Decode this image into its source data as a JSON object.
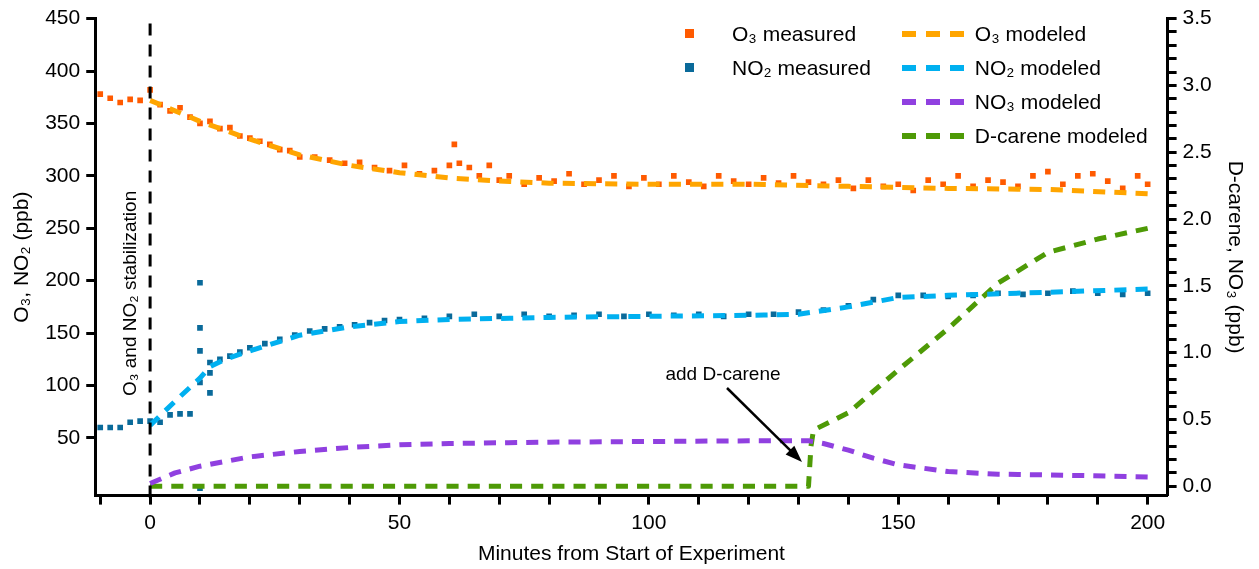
{
  "chart_data": {
    "type": "scatter",
    "xlabel": "Minutes from Start of Experiment",
    "ylabel": "O₃, NO₂ (ppb)",
    "y2label": "D-carene, NO₃ (ppb)",
    "xlim": [
      -11,
      204
    ],
    "xticks": [
      {
        "value": -10,
        "label": null
      },
      0,
      {
        "value": 10,
        "label": null
      },
      {
        "value": 20,
        "label": null
      },
      {
        "value": 30,
        "label": null
      },
      {
        "value": 40,
        "label": null
      },
      50,
      {
        "value": 60,
        "label": null
      },
      {
        "value": 70,
        "label": null
      },
      {
        "value": 80,
        "label": null
      },
      {
        "value": 90,
        "label": null
      },
      100,
      {
        "value": 110,
        "label": null
      },
      {
        "value": 120,
        "label": null
      },
      {
        "value": 130,
        "label": null
      },
      {
        "value": 140,
        "label": null
      },
      150,
      {
        "value": 160,
        "label": null
      },
      {
        "value": 170,
        "label": null
      },
      {
        "value": 180,
        "label": null
      },
      {
        "value": 190,
        "label": null
      },
      200
    ],
    "ylim": [
      -5,
      450
    ],
    "yticks": [
      50,
      100,
      150,
      200,
      250,
      300,
      350,
      400,
      450
    ],
    "y2lim": [
      -0.07,
      3.5
    ],
    "y2ticks": [
      {
        "value": 0,
        "label": "0.0"
      },
      {
        "value": 0.1,
        "label": null
      },
      {
        "value": 0.2,
        "label": null
      },
      {
        "value": 0.3,
        "label": null
      },
      {
        "value": 0.4,
        "label": null
      },
      0.5,
      {
        "value": 0.6,
        "label": null
      },
      {
        "value": 0.7,
        "label": null
      },
      {
        "value": 0.8,
        "label": null
      },
      {
        "value": 0.9,
        "label": null
      },
      {
        "value": 1,
        "label": "1.0"
      },
      {
        "value": 1.1,
        "label": null
      },
      {
        "value": 1.2,
        "label": null
      },
      {
        "value": 1.3,
        "label": null
      },
      {
        "value": 1.4,
        "label": null
      },
      1.5,
      {
        "value": 1.6,
        "label": null
      },
      {
        "value": 1.7,
        "label": null
      },
      {
        "value": 1.8,
        "label": null
      },
      {
        "value": 1.9,
        "label": null
      },
      {
        "value": 2,
        "label": "2.0"
      },
      {
        "value": 2.1,
        "label": null
      },
      {
        "value": 2.2,
        "label": null
      },
      {
        "value": 2.3,
        "label": null
      },
      {
        "value": 2.4,
        "label": null
      },
      2.5,
      {
        "value": 2.6,
        "label": null
      },
      {
        "value": 2.7,
        "label": null
      },
      {
        "value": 2.8,
        "label": null
      },
      {
        "value": 2.9,
        "label": null
      },
      {
        "value": 3,
        "label": "3.0"
      },
      {
        "value": 3.1,
        "label": null
      },
      {
        "value": 3.2,
        "label": null
      },
      {
        "value": 3.3,
        "label": null
      },
      {
        "value": 3.4,
        "label": null
      },
      3.5
    ],
    "legend": "top right",
    "ref_lines": [
      {
        "axis": "x",
        "value": 0,
        "label": "O₃ and NO₂ stabilization",
        "color": "#000000",
        "line_style": "dashed"
      }
    ],
    "annotations": [
      "add D-carene"
    ],
    "series": [
      {
        "name": "O₃ measured",
        "marker": "square",
        "color": "#ff5a00",
        "x": [
          -10,
          -8,
          -6,
          -4,
          -2,
          0,
          2,
          4,
          6,
          8,
          10,
          12,
          14,
          16,
          18,
          20,
          22,
          24,
          26,
          28,
          30,
          33,
          36,
          39,
          42,
          45,
          48,
          51,
          54,
          57,
          60,
          61,
          62,
          64,
          66,
          68,
          70,
          72,
          75,
          78,
          81,
          84,
          87,
          90,
          93,
          96,
          99,
          102,
          105,
          108,
          111,
          114,
          117,
          120,
          123,
          126,
          129,
          132,
          135,
          138,
          141,
          144,
          147,
          150,
          153,
          156,
          159,
          162,
          165,
          168,
          171,
          174,
          177,
          180,
          183,
          186,
          189,
          192,
          195,
          198,
          200
        ],
        "values": [
          378,
          374,
          370,
          373,
          372,
          382,
          368,
          362,
          365,
          356,
          350,
          352,
          345,
          346,
          338,
          336,
          333,
          330,
          325,
          324,
          318,
          318,
          315,
          312,
          313,
          308,
          305,
          310,
          302,
          305,
          310,
          330,
          312,
          308,
          300,
          310,
          296,
          300,
          292,
          298,
          295,
          302,
          292,
          296,
          300,
          290,
          298,
          292,
          300,
          294,
          290,
          300,
          295,
          292,
          298,
          293,
          300,
          294,
          292,
          296,
          288,
          296,
          290,
          292,
          286,
          296,
          292,
          300,
          290,
          296,
          294,
          290,
          300,
          304,
          292,
          300,
          302,
          295,
          288,
          300,
          292
        ]
      },
      {
        "name": "NO₂ measured",
        "marker": "square",
        "color": "#0a6a9a",
        "x": [
          -10,
          -8,
          -6,
          -4,
          -2,
          0,
          2,
          4,
          6,
          8,
          10,
          10,
          10,
          10,
          10,
          12,
          12,
          12,
          14,
          16,
          18,
          20,
          23,
          26,
          29,
          32,
          35,
          38,
          41,
          44,
          47,
          50,
          55,
          60,
          65,
          70,
          75,
          80,
          85,
          90,
          95,
          100,
          105,
          110,
          115,
          120,
          125,
          130,
          135,
          140,
          145,
          150,
          155,
          160,
          165,
          170,
          175,
          180,
          185,
          190,
          195,
          200
        ],
        "values": [
          60,
          60,
          60,
          65,
          66,
          66,
          65,
          72,
          73,
          73,
          2,
          103,
          133,
          155,
          198,
          93,
          112,
          122,
          125,
          128,
          132,
          136,
          140,
          144,
          148,
          152,
          154,
          156,
          158,
          160,
          162,
          163,
          164,
          166,
          168,
          166,
          168,
          166,
          167,
          168,
          166,
          168,
          167,
          168,
          166,
          168,
          168,
          170,
          172,
          176,
          182,
          186,
          186,
          185,
          186,
          188,
          187,
          188,
          190,
          188,
          187,
          188
        ]
      },
      {
        "name": "O₃ modeled",
        "type": "line",
        "line_style": "dashed",
        "color": "#ffa500",
        "x": [
          0,
          10,
          20,
          30,
          40,
          50,
          60,
          70,
          80,
          100,
          120,
          140,
          160,
          180,
          200
        ],
        "values": [
          372,
          352,
          335,
          320,
          310,
          303,
          298,
          295,
          293,
          292,
          292,
          290,
          288,
          287,
          283
        ]
      },
      {
        "name": "NO₂ modeled",
        "type": "line",
        "line_style": "dashed",
        "color": "#00b0f0",
        "x": [
          0,
          5,
          10,
          12,
          15,
          20,
          30,
          40,
          50,
          60,
          80,
          100,
          120,
          130,
          140,
          150,
          160,
          180,
          200
        ],
        "values": [
          62,
          85,
          107,
          118,
          125,
          133,
          148,
          156,
          161,
          163,
          165,
          166,
          167,
          168,
          175,
          184,
          186,
          189,
          192
        ]
      },
      {
        "name": "NO₃ modeled",
        "type": "line",
        "line_style": "dashed",
        "color": "#9040e0",
        "axis": "y2",
        "x": [
          0,
          5,
          10,
          20,
          30,
          40,
          50,
          60,
          80,
          100,
          120,
          132,
          135,
          140,
          145,
          150,
          160,
          170,
          180,
          200
        ],
        "values": [
          0.02,
          0.1,
          0.15,
          0.22,
          0.26,
          0.29,
          0.31,
          0.32,
          0.33,
          0.335,
          0.34,
          0.34,
          0.32,
          0.27,
          0.21,
          0.16,
          0.11,
          0.09,
          0.085,
          0.07
        ]
      },
      {
        "name": "D-carene modeled",
        "type": "line",
        "line_style": "dashed",
        "color": "#4e9a06",
        "axis": "y2",
        "x": [
          0,
          131,
          132,
          132.5,
          133,
          140,
          150,
          160,
          170,
          180,
          190,
          200
        ],
        "values": [
          0,
          0,
          0,
          0.3,
          0.42,
          0.55,
          0.87,
          1.18,
          1.52,
          1.75,
          1.85,
          1.93
        ]
      }
    ]
  }
}
